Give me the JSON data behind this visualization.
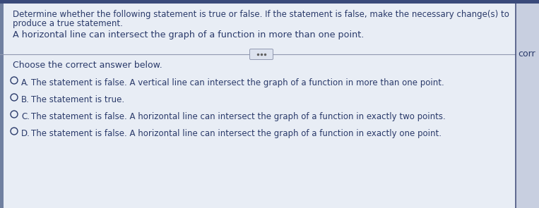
{
  "main_bg": "#dde3ed",
  "content_bg": "#e8edf5",
  "right_panel_bg": "#c8cfe0",
  "left_bar_color": "#7080a0",
  "right_line_color": "#4a5580",
  "title_text_line1": "Determine whether the following statement is true or false. If the statement is false, make the necessary change(s) to",
  "title_text_line2": "produce a true statement.",
  "statement": "A horizontal line can intersect the graph of a function in more than one point.",
  "choose_text": "Choose the correct answer below.",
  "options": [
    {
      "label": "A.",
      "text": "The statement is false. A vertical line can intersect the graph of a function in more than one point."
    },
    {
      "label": "B.",
      "text": "The statement is true."
    },
    {
      "label": "C.",
      "text": "The statement is false. A horizontal line can intersect the graph of a function in exactly two points."
    },
    {
      "label": "D.",
      "text": "The statement is false. A horizontal line can intersect the graph of a function in exactly one point."
    }
  ],
  "right_label": "corr",
  "text_color": "#2a3a6a",
  "divider_color": "#9098b0",
  "circle_color": "#2a3a6a",
  "dots_color": "#606060",
  "font_size_title": 8.5,
  "font_size_statement": 9.2,
  "font_size_choose": 9.0,
  "font_size_options": 8.5,
  "font_size_right": 9.0,
  "top_bar_color": "#3a4a7a",
  "top_bar_height": 5
}
